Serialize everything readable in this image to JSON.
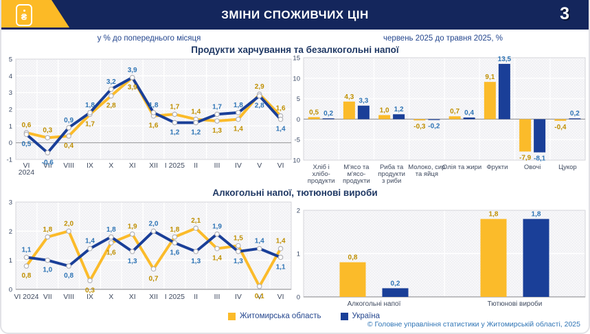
{
  "header": {
    "title": "ЗМІНИ СПОЖИВЧИХ ЦІН",
    "page_number": "3",
    "logo_symbol": "₴",
    "colors": {
      "accent_yellow": "#FCBA26",
      "navy": "#14265C"
    }
  },
  "legend": {
    "items": [
      {
        "label": "Житомирська область",
        "color": "#FBBB2A"
      },
      {
        "label": "Україна",
        "color": "#1A3F98"
      }
    ]
  },
  "footer": {
    "copyright": "© Головне управління статистики у Житомирській області, 2025"
  },
  "chart_data": [
    {
      "id": "cpi-monthly",
      "type": "line",
      "title": "у % до попереднього місяця",
      "categories": [
        "VI\n2024",
        "VII",
        "VIII",
        "IX",
        "X",
        "XI",
        "XII",
        "I 2025",
        "II",
        "III",
        "IV",
        "V",
        "VI"
      ],
      "series": [
        {
          "name": "Житомирська область",
          "color": "#FBBB2A",
          "label_color": "#BF8F00",
          "values": [
            0.6,
            0.3,
            0.4,
            1.7,
            2.8,
            3.9,
            1.6,
            1.7,
            1.4,
            1.3,
            1.4,
            2.9,
            1.6
          ]
        },
        {
          "name": "Україна",
          "color": "#1A3F98",
          "label_color": "#2E74B5",
          "values": [
            0.5,
            -0.6,
            0.9,
            1.8,
            3.2,
            3.9,
            1.8,
            1.2,
            1.2,
            1.7,
            1.8,
            2.8,
            1.4
          ]
        }
      ],
      "ylim": [
        -1,
        5
      ],
      "yticks": [
        -1,
        0,
        1,
        2,
        3,
        4,
        5
      ],
      "grid": true,
      "value_labels": true,
      "decimal": "comma"
    },
    {
      "id": "food-products",
      "type": "bar",
      "title": "Продукти харчування та безалкогольні напої",
      "subtitle": "червень 2025 до травня 2025, %",
      "categories": [
        "Хліб і\nхлібо-\nпродукти",
        "М'ясо та\nм'ясо-\nпродукти",
        "Риба та\nпродукти\nз риби",
        "Молоко, сир\nта яйця",
        "Олія та жири",
        "Фрукти",
        "Овочі",
        "Цукор"
      ],
      "series": [
        {
          "name": "Житомирська область",
          "color": "#FBBB2A",
          "label_color": "#BF8F00",
          "values": [
            0.5,
            4.3,
            1.0,
            -0.3,
            0.7,
            9.1,
            -7.9,
            -0.4
          ]
        },
        {
          "name": "Україна",
          "color": "#1A3F98",
          "label_color": "#2E74B5",
          "values": [
            0.2,
            3.3,
            1.2,
            -0.2,
            0.4,
            13.5,
            -8.1,
            0.2
          ]
        }
      ],
      "ylim": [
        -10,
        15
      ],
      "yticks": [
        -10,
        -5,
        0,
        5,
        10,
        15
      ],
      "grid": true,
      "value_labels": true,
      "decimal": "comma"
    },
    {
      "id": "alcohol-tobacco-monthly",
      "type": "line",
      "title": "Алкогольні напої, тютюнові вироби",
      "categories": [
        "VI 2024",
        "VII",
        "VIII",
        "IX",
        "X",
        "XI",
        "XII",
        "I 2025",
        "II",
        "III",
        "IV",
        "V",
        "VI"
      ],
      "series": [
        {
          "name": "Житомирська область",
          "color": "#FBBB2A",
          "label_color": "#BF8F00",
          "values": [
            0.8,
            1.8,
            2.0,
            0.3,
            1.6,
            1.9,
            0.7,
            1.8,
            2.1,
            1.4,
            1.5,
            0.1,
            1.4
          ]
        },
        {
          "name": "Україна",
          "color": "#1A3F98",
          "label_color": "#2E74B5",
          "values": [
            1.1,
            1.0,
            0.8,
            1.4,
            1.8,
            1.3,
            2.0,
            1.6,
            1.3,
            1.9,
            1.3,
            1.4,
            1.1
          ]
        }
      ],
      "ylim": [
        0,
        3
      ],
      "yticks": [
        0,
        1,
        2,
        3
      ],
      "grid": true,
      "value_labels": true,
      "decimal": "comma"
    },
    {
      "id": "alcohol-tobacco-change",
      "type": "bar",
      "title": "",
      "categories": [
        "Алкогольні напої",
        "Тютюнові вироби"
      ],
      "series": [
        {
          "name": "Житомирська область",
          "color": "#FBBB2A",
          "label_color": "#BF8F00",
          "values": [
            0.8,
            1.8
          ]
        },
        {
          "name": "Україна",
          "color": "#1A3F98",
          "label_color": "#2E74B5",
          "values": [
            0.2,
            1.8
          ]
        }
      ],
      "ylim": [
        0,
        2
      ],
      "yticks": [
        0,
        1,
        2
      ],
      "grid": true,
      "value_labels": true,
      "decimal": "comma"
    }
  ]
}
